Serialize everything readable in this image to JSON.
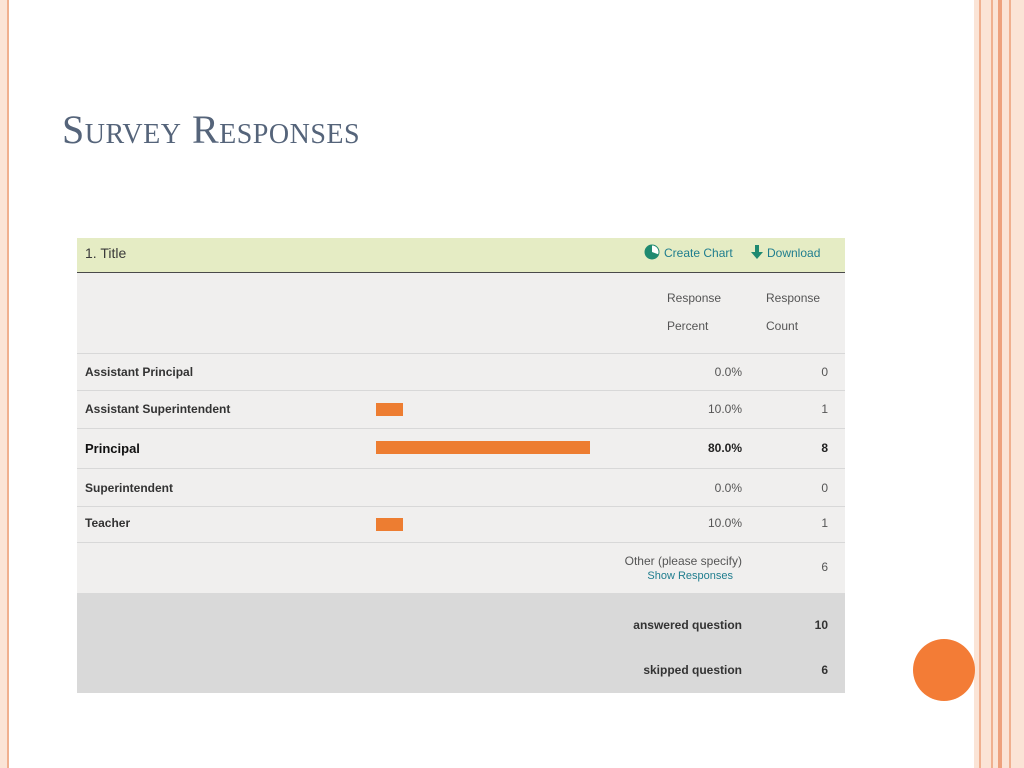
{
  "slide": {
    "title": "Survey Responses"
  },
  "question": {
    "title": "1. Title",
    "actions": {
      "create_chart": "Create Chart",
      "download": "Download"
    },
    "columns": {
      "percent_line1": "Response",
      "percent_line2": "Percent",
      "count_line1": "Response",
      "count_line2": "Count"
    },
    "rows": [
      {
        "label": "Assistant Principal",
        "percent": "0.0%",
        "count": "0",
        "fraction": 0.0
      },
      {
        "label": "Assistant Superintendent",
        "percent": "10.0%",
        "count": "1",
        "fraction": 0.1
      },
      {
        "label": "Principal",
        "percent": "80.0%",
        "count": "8",
        "fraction": 0.8
      },
      {
        "label": "Superintendent",
        "percent": "0.0%",
        "count": "0",
        "fraction": 0.0
      },
      {
        "label": "Teacher",
        "percent": "10.0%",
        "count": "1",
        "fraction": 0.1
      }
    ],
    "other": {
      "label": "Other (please specify)",
      "link": "Show Responses",
      "count": "6"
    },
    "summary": {
      "answered_label": "answered question",
      "answered": "10",
      "skipped_label": "skipped question",
      "skipped": "6"
    }
  },
  "colors": {
    "bar": "#ed7d31",
    "accent": "#1f7d8e",
    "header_bg": "#e5ecc4",
    "title": "#55647a",
    "circle": "#f37c36"
  },
  "icons": {
    "create_chart": "pie-chart-icon",
    "download": "download-arrow-icon"
  }
}
